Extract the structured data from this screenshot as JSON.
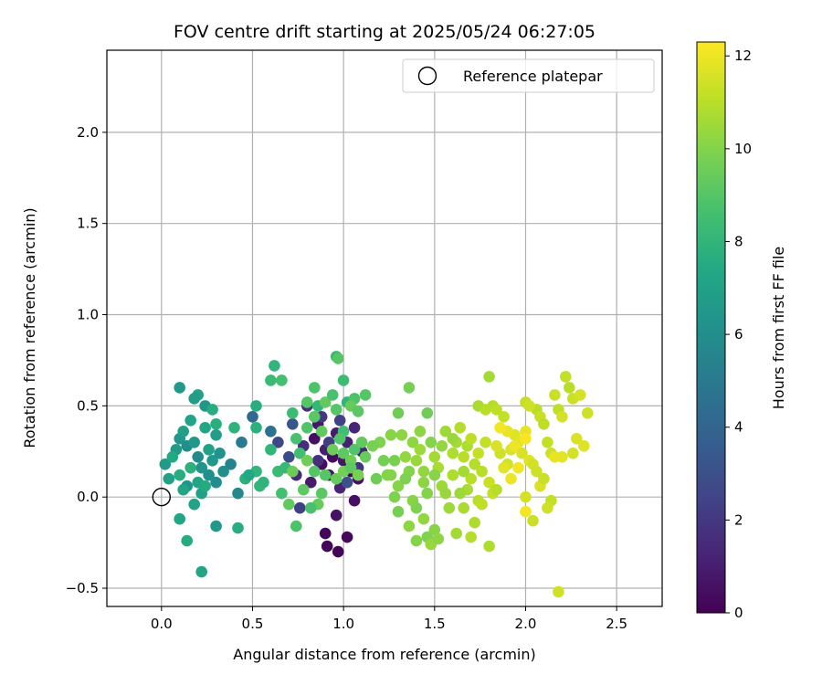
{
  "chart_data": {
    "type": "scatter",
    "title": "FOV centre drift starting at 2025/05/24 06:27:05",
    "xlabel": "Angular distance from reference (arcmin)",
    "ylabel": "Rotation from reference (arcmin)",
    "colorbar_label": "Hours from first FF file",
    "xlim": [
      -0.3,
      2.75
    ],
    "ylim": [
      -0.6,
      2.45
    ],
    "xticks": [
      0.0,
      0.5,
      1.0,
      1.5,
      2.0,
      2.5
    ],
    "xtick_labels": [
      "0.0",
      "0.5",
      "1.0",
      "1.5",
      "2.0",
      "2.5"
    ],
    "yticks": [
      -0.5,
      0.0,
      0.5,
      1.0,
      1.5,
      2.0
    ],
    "ytick_labels": [
      "−0.5",
      "0.0",
      "0.5",
      "1.0",
      "1.5",
      "2.0"
    ],
    "colorbar_range": [
      0,
      12.3
    ],
    "colorbar_ticks": [
      0,
      2,
      4,
      6,
      8,
      10,
      12
    ],
    "colorbar_tick_labels": [
      "0",
      "2",
      "4",
      "6",
      "8",
      "10",
      "12"
    ],
    "colormap": "viridis",
    "grid": true,
    "legend": {
      "placement": "top-right",
      "entries": [
        "Reference platepar"
      ]
    },
    "reference": {
      "name": "Reference platepar",
      "x": 0.0,
      "y": 0.0
    },
    "points": [
      [
        0.84,
        0.32,
        0.5
      ],
      [
        0.86,
        0.4,
        0.8
      ],
      [
        0.88,
        0.18,
        0.4
      ],
      [
        0.9,
        0.26,
        1.0
      ],
      [
        0.92,
        0.12,
        0.6
      ],
      [
        0.94,
        0.22,
        0.3
      ],
      [
        0.96,
        0.35,
        0.9
      ],
      [
        0.98,
        0.05,
        1.2
      ],
      [
        1.0,
        0.2,
        0.7
      ],
      [
        1.02,
        0.3,
        1.1
      ],
      [
        1.04,
        0.14,
        0.2
      ],
      [
        1.06,
        0.38,
        1.3
      ],
      [
        1.08,
        0.1,
        0.5
      ],
      [
        1.1,
        0.25,
        1.4
      ],
      [
        0.82,
        0.08,
        0.9
      ],
      [
        0.78,
        0.28,
        1.6
      ],
      [
        0.8,
        0.5,
        1.8
      ],
      [
        0.74,
        0.12,
        1.5
      ],
      [
        0.86,
        0.2,
        1.7
      ],
      [
        0.9,
        -0.2,
        0.2
      ],
      [
        0.91,
        -0.27,
        0.1
      ],
      [
        0.97,
        -0.3,
        0.15
      ],
      [
        1.02,
        -0.22,
        0.25
      ],
      [
        0.96,
        -0.1,
        0.6
      ],
      [
        1.06,
        -0.02,
        0.5
      ],
      [
        0.88,
        0.44,
        2.0
      ],
      [
        1.08,
        0.16,
        1.9
      ],
      [
        0.92,
        0.3,
        2.2
      ],
      [
        0.76,
        -0.06,
        2.3
      ],
      [
        0.98,
        0.42,
        2.4
      ],
      [
        0.64,
        0.3,
        2.6
      ],
      [
        0.7,
        0.22,
        2.8
      ],
      [
        1.02,
        0.08,
        3.0
      ],
      [
        0.72,
        0.4,
        3.3
      ],
      [
        0.5,
        0.44,
        4.2
      ],
      [
        0.6,
        0.36,
        4.6
      ],
      [
        0.44,
        0.3,
        5.0
      ],
      [
        0.38,
        0.18,
        5.4
      ],
      [
        0.42,
        0.02,
        5.7
      ],
      [
        0.3,
        0.08,
        5.9
      ],
      [
        0.26,
        0.12,
        6.1
      ],
      [
        0.22,
        0.16,
        6.3
      ],
      [
        0.2,
        0.22,
        5.8
      ],
      [
        0.14,
        0.28,
        6.0
      ],
      [
        0.1,
        0.32,
        6.4
      ],
      [
        0.08,
        0.26,
        6.7
      ],
      [
        0.12,
        0.36,
        6.9
      ],
      [
        0.16,
        0.42,
        7.1
      ],
      [
        0.18,
        0.3,
        6.6
      ],
      [
        0.24,
        0.38,
        7.3
      ],
      [
        0.26,
        0.26,
        7.0
      ],
      [
        0.28,
        0.2,
        6.5
      ],
      [
        0.3,
        0.34,
        6.8
      ],
      [
        0.32,
        0.24,
        6.2
      ],
      [
        0.34,
        0.14,
        6.0
      ],
      [
        0.2,
        0.08,
        7.2
      ],
      [
        0.22,
        0.02,
        6.9
      ],
      [
        0.18,
        -0.04,
        7.1
      ],
      [
        0.14,
        0.06,
        6.3
      ],
      [
        0.04,
        0.1,
        7.0
      ],
      [
        0.02,
        0.18,
        6.7
      ],
      [
        0.06,
        0.22,
        7.4
      ],
      [
        0.1,
        0.12,
        7.6
      ],
      [
        0.12,
        0.04,
        7.2
      ],
      [
        0.16,
        0.16,
        7.8
      ],
      [
        0.24,
        0.06,
        7.5
      ],
      [
        0.2,
        0.56,
        7.0
      ],
      [
        0.24,
        0.5,
        6.4
      ],
      [
        0.18,
        0.54,
        6.8
      ],
      [
        0.1,
        0.6,
        6.5
      ],
      [
        0.1,
        -0.12,
        7.2
      ],
      [
        0.3,
        -0.16,
        6.5
      ],
      [
        0.14,
        -0.24,
        7.5
      ],
      [
        0.22,
        -0.41,
        7.2
      ],
      [
        0.42,
        -0.17,
        7.6
      ],
      [
        0.3,
        0.4,
        7.7
      ],
      [
        0.4,
        0.38,
        7.9
      ],
      [
        0.28,
        0.48,
        7.6
      ],
      [
        0.46,
        0.1,
        7.8
      ],
      [
        0.52,
        0.14,
        8.0
      ],
      [
        0.48,
        0.12,
        7.4
      ],
      [
        0.54,
        0.06,
        8.1
      ],
      [
        0.56,
        0.08,
        7.9
      ],
      [
        0.52,
        0.5,
        7.6
      ],
      [
        0.52,
        0.38,
        7.8
      ],
      [
        0.6,
        0.26,
        8.0
      ],
      [
        0.64,
        0.14,
        8.3
      ],
      [
        0.66,
        0.02,
        8.6
      ],
      [
        0.68,
        0.16,
        8.2
      ],
      [
        0.62,
        0.72,
        8.0
      ],
      [
        0.6,
        0.64,
        8.3
      ],
      [
        0.66,
        0.64,
        8.6
      ],
      [
        0.72,
        0.46,
        8.4
      ],
      [
        0.74,
        0.32,
        8.7
      ],
      [
        0.76,
        0.24,
        8.5
      ],
      [
        0.8,
        0.38,
        8.9
      ],
      [
        0.84,
        0.44,
        9.1
      ],
      [
        0.88,
        0.36,
        9.3
      ],
      [
        0.84,
        0.6,
        8.8
      ],
      [
        0.8,
        0.52,
        9.0
      ],
      [
        0.86,
        0.5,
        8.1
      ],
      [
        0.9,
        0.52,
        9.3
      ],
      [
        0.94,
        0.56,
        8.7
      ],
      [
        0.96,
        0.48,
        9.0
      ],
      [
        1.0,
        0.64,
        8.4
      ],
      [
        1.02,
        0.52,
        8.0
      ],
      [
        1.06,
        0.54,
        8.8
      ],
      [
        1.12,
        0.56,
        9.0
      ],
      [
        1.04,
        0.5,
        9.4
      ],
      [
        1.08,
        0.47,
        9.1
      ],
      [
        0.96,
        0.77,
        8.2
      ],
      [
        0.97,
        0.76,
        9.0
      ],
      [
        1.0,
        0.36,
        8.5
      ],
      [
        0.98,
        0.32,
        8.9
      ],
      [
        1.0,
        0.24,
        9.2
      ],
      [
        1.04,
        0.2,
        9.6
      ],
      [
        1.06,
        0.26,
        8.9
      ],
      [
        1.1,
        0.3,
        9.3
      ],
      [
        0.94,
        0.26,
        9.5
      ],
      [
        0.9,
        0.12,
        9.0
      ],
      [
        0.96,
        0.1,
        9.4
      ],
      [
        1.0,
        0.14,
        9.7
      ],
      [
        1.04,
        0.16,
        9.2
      ],
      [
        1.08,
        0.12,
        9.8
      ],
      [
        0.88,
        0.02,
        9.1
      ],
      [
        0.86,
        -0.04,
        9.4
      ],
      [
        0.82,
        -0.06,
        8.7
      ],
      [
        0.78,
        0.04,
        9.2
      ],
      [
        0.72,
        0.14,
        9.5
      ],
      [
        0.7,
        -0.04,
        9.3
      ],
      [
        0.74,
        -0.16,
        8.8
      ],
      [
        0.8,
        0.2,
        9.6
      ],
      [
        0.84,
        0.14,
        9.0
      ],
      [
        1.12,
        0.22,
        9.4
      ],
      [
        1.2,
        0.3,
        9.9
      ],
      [
        1.26,
        0.34,
        10.1
      ],
      [
        1.32,
        0.34,
        10.2
      ],
      [
        1.3,
        0.46,
        9.6
      ],
      [
        1.28,
        0.2,
        9.8
      ],
      [
        1.24,
        0.12,
        10.0
      ],
      [
        1.34,
        0.22,
        10.3
      ],
      [
        1.36,
        0.14,
        10.0
      ],
      [
        1.3,
        0.06,
        10.1
      ],
      [
        1.28,
        0.0,
        9.9
      ],
      [
        1.3,
        -0.08,
        9.7
      ],
      [
        1.38,
        0.3,
        10.2
      ],
      [
        1.36,
        0.6,
        9.8
      ],
      [
        1.4,
        0.2,
        10.4
      ],
      [
        1.42,
        0.26,
        10.5
      ],
      [
        1.44,
        0.14,
        10.3
      ],
      [
        1.46,
        0.46,
        9.6
      ],
      [
        1.48,
        0.3,
        10.0
      ],
      [
        1.5,
        0.22,
        10.6
      ],
      [
        1.52,
        0.16,
        10.7
      ],
      [
        1.54,
        0.06,
        10.5
      ],
      [
        1.56,
        0.02,
        10.4
      ],
      [
        1.44,
        0.08,
        10.2
      ],
      [
        1.38,
        -0.02,
        10.1
      ],
      [
        1.4,
        -0.06,
        9.9
      ],
      [
        1.44,
        -0.12,
        10.3
      ],
      [
        1.36,
        -0.16,
        10.2
      ],
      [
        1.4,
        -0.24,
        10.0
      ],
      [
        1.46,
        -0.22,
        9.9
      ],
      [
        1.5,
        -0.18,
        10.1
      ],
      [
        1.48,
        -0.26,
        10.4
      ],
      [
        1.52,
        -0.23,
        10.2
      ],
      [
        1.58,
        -0.06,
        10.5
      ],
      [
        1.62,
        -0.2,
        10.6
      ],
      [
        1.66,
        -0.06,
        10.7
      ],
      [
        1.7,
        -0.22,
        10.9
      ],
      [
        1.72,
        -0.14,
        10.8
      ],
      [
        1.74,
        -0.02,
        11.0
      ],
      [
        1.56,
        0.36,
        10.5
      ],
      [
        1.6,
        0.24,
        10.8
      ],
      [
        1.62,
        0.3,
        10.6
      ],
      [
        1.64,
        0.38,
        10.9
      ],
      [
        1.66,
        0.22,
        11.0
      ],
      [
        1.68,
        0.28,
        10.8
      ],
      [
        1.7,
        0.32,
        11.1
      ],
      [
        1.72,
        0.18,
        10.9
      ],
      [
        1.74,
        0.24,
        11.2
      ],
      [
        1.76,
        0.14,
        11.0
      ],
      [
        1.78,
        0.3,
        11.2
      ],
      [
        1.7,
        0.1,
        11.0
      ],
      [
        1.68,
        0.04,
        10.7
      ],
      [
        1.66,
        0.14,
        10.6
      ],
      [
        1.64,
        0.02,
        10.5
      ],
      [
        1.6,
        0.12,
        10.8
      ],
      [
        1.74,
        0.5,
        10.7
      ],
      [
        1.78,
        0.48,
        11.0
      ],
      [
        1.8,
        0.66,
        10.6
      ],
      [
        1.82,
        0.5,
        10.9
      ],
      [
        1.84,
        0.48,
        11.1
      ],
      [
        1.8,
        -0.27,
        10.8
      ],
      [
        1.76,
        -0.04,
        11.1
      ],
      [
        1.8,
        0.08,
        11.3
      ],
      [
        1.82,
        0.02,
        11.2
      ],
      [
        1.86,
        0.24,
        11.4
      ],
      [
        1.9,
        0.18,
        11.5
      ],
      [
        1.92,
        0.26,
        11.6
      ],
      [
        1.94,
        0.34,
        11.7
      ],
      [
        1.96,
        0.3,
        11.8
      ],
      [
        1.98,
        0.24,
        11.6
      ],
      [
        2.0,
        0.36,
        11.9
      ],
      [
        2.02,
        0.2,
        11.7
      ],
      [
        2.04,
        0.18,
        11.5
      ],
      [
        2.06,
        0.14,
        11.4
      ],
      [
        2.08,
        0.06,
        11.6
      ],
      [
        2.1,
        0.1,
        11.3
      ],
      [
        2.0,
        0.52,
        11.2
      ],
      [
        2.06,
        0.48,
        11.0
      ],
      [
        2.08,
        0.44,
        11.3
      ],
      [
        2.1,
        0.4,
        11.1
      ],
      [
        2.02,
        0.5,
        11.4
      ],
      [
        2.12,
        0.3,
        11.2
      ],
      [
        2.14,
        0.24,
        11.4
      ],
      [
        2.16,
        0.56,
        11.3
      ],
      [
        2.18,
        0.48,
        11.1
      ],
      [
        2.2,
        0.44,
        11.5
      ],
      [
        2.22,
        0.66,
        11.2
      ],
      [
        2.24,
        0.6,
        11.0
      ],
      [
        2.26,
        0.54,
        11.3
      ],
      [
        2.3,
        0.56,
        11.5
      ],
      [
        2.34,
        0.46,
        11.4
      ],
      [
        2.28,
        0.32,
        11.6
      ],
      [
        2.32,
        0.28,
        11.7
      ],
      [
        2.26,
        0.24,
        11.5
      ],
      [
        2.2,
        0.22,
        11.8
      ],
      [
        2.16,
        0.22,
        11.9
      ],
      [
        2.14,
        -0.02,
        11.2
      ],
      [
        2.12,
        -0.06,
        11.4
      ],
      [
        2.04,
        -0.13,
        11.3
      ],
      [
        2.0,
        0.0,
        11.5
      ],
      [
        2.18,
        -0.52,
        11.4
      ],
      [
        1.9,
        0.36,
        11.9
      ],
      [
        1.94,
        0.28,
        12.0
      ],
      [
        2.0,
        0.32,
        12.2
      ],
      [
        2.0,
        -0.08,
        12.1
      ],
      [
        1.86,
        0.38,
        12.1
      ],
      [
        1.92,
        0.1,
        12.0
      ],
      [
        1.88,
        0.44,
        11.2
      ],
      [
        1.84,
        0.28,
        11.6
      ],
      [
        1.84,
        0.04,
        11.0
      ],
      [
        1.88,
        0.16,
        11.8
      ],
      [
        1.96,
        0.16,
        12.1
      ],
      [
        1.6,
        0.32,
        10.4
      ],
      [
        1.54,
        0.28,
        10.3
      ],
      [
        1.5,
        0.12,
        10.1
      ],
      [
        1.46,
        0.02,
        10.0
      ],
      [
        1.34,
        0.1,
        9.9
      ],
      [
        1.42,
        0.36,
        10.2
      ],
      [
        1.26,
        0.12,
        10.0
      ],
      [
        1.22,
        0.2,
        9.7
      ],
      [
        1.16,
        0.28,
        9.8
      ],
      [
        1.18,
        0.1,
        9.6
      ]
    ]
  }
}
